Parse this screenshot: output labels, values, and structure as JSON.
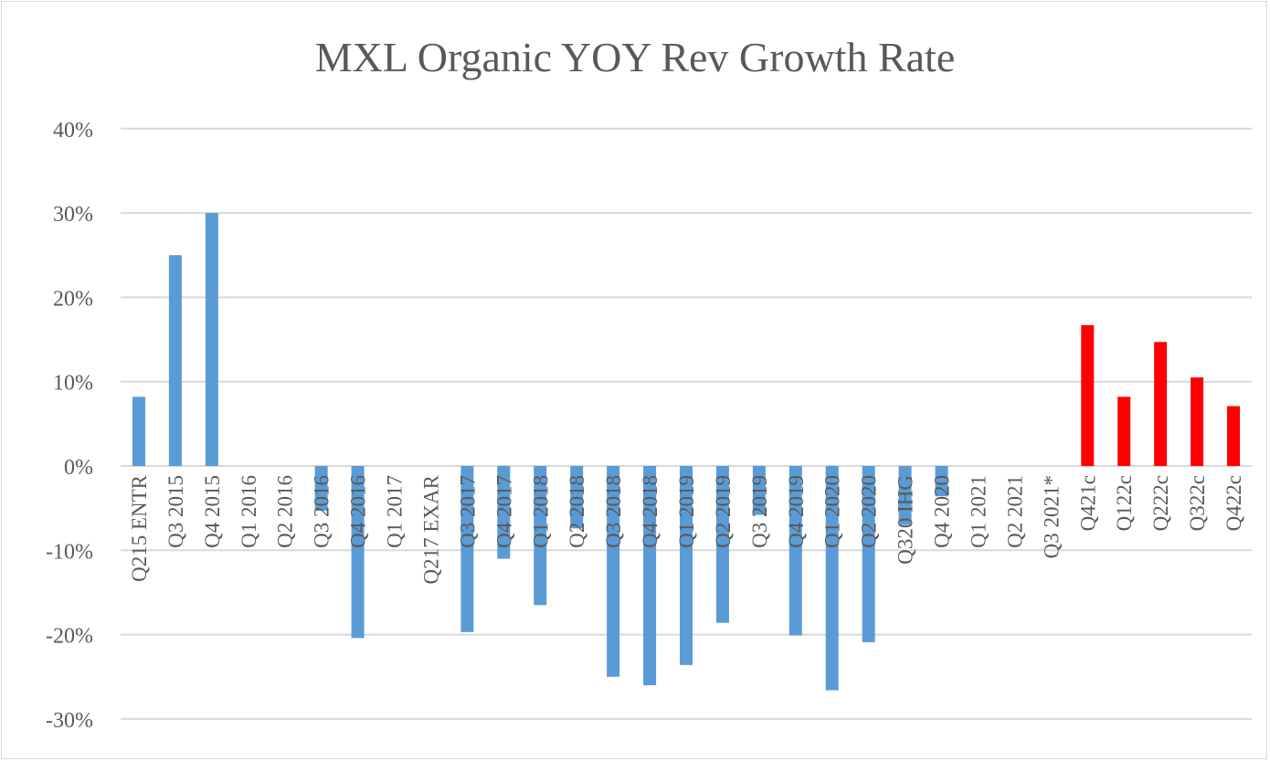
{
  "chart_data": {
    "type": "bar",
    "title": "MXL Organic YOY Rev Growth Rate",
    "xlabel": "",
    "ylabel": "",
    "ylim": [
      -0.3,
      0.4
    ],
    "yticks": [
      0.4,
      0.3,
      0.2,
      0.1,
      0,
      -0.1,
      -0.2,
      -0.3
    ],
    "ytick_labels": [
      "40%",
      "30%",
      "20%",
      "10%",
      "0%",
      "-10%",
      "-20%",
      "-30%"
    ],
    "grid": true,
    "legend": "none",
    "categories": [
      "Q215 ENTR",
      "Q3 2015",
      "Q4 2015",
      "Q1 2016",
      "Q2 2016",
      "Q3 2016",
      "Q4 2016",
      "Q1 2017",
      "Q217 EXAR",
      "Q3 2017",
      "Q4 2017",
      "Q1 2018",
      "Q2 2018",
      "Q3 2018",
      "Q4 2018",
      "Q1 2019",
      "Q2 2019",
      "Q3 2019",
      "Q4 2019",
      "Q1 2020",
      "Q2 2020",
      "Q320 IHG",
      "Q4 2020",
      "Q1 2021",
      "Q2 2021",
      "Q3 2021*",
      "Q421c",
      "Q122c",
      "Q222c",
      "Q322c",
      "Q422c"
    ],
    "values": [
      0.082,
      0.25,
      0.3,
      0,
      0,
      -0.053,
      -0.204,
      0,
      0,
      -0.197,
      -0.11,
      -0.165,
      -0.074,
      -0.25,
      -0.26,
      -0.236,
      -0.186,
      -0.058,
      -0.201,
      -0.266,
      -0.209,
      -0.07,
      -0.036,
      0,
      0,
      0,
      0.167,
      0.082,
      0.147,
      0.105,
      0.071
    ],
    "series_colors": {
      "actual": "#5b9bd5",
      "estimate": "#ff0000"
    },
    "estimate_start_index": 26
  }
}
